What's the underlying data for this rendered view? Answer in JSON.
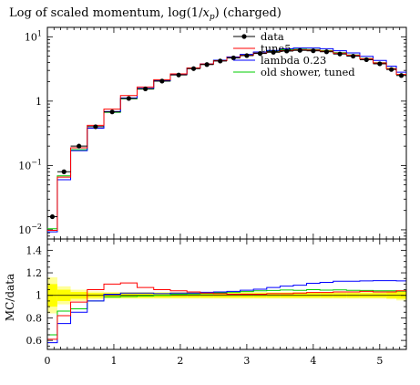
{
  "title": "Log of scaled momentum, log(1/x_p) (charged)",
  "title_parts": {
    "prefix": "Log of scaled momentum, log(1/",
    "var": "x",
    "sub": "p",
    "suffix": ") (charged)"
  },
  "colors": {
    "data": "#000000",
    "tune5": "#ff0000",
    "lambda": "#0000ff",
    "old_shower": "#00cc00",
    "band_inner": "#ffff00",
    "band_outer": "#ffff99"
  },
  "chart_data": [
    {
      "type": "line",
      "panel": "main",
      "xlim": [
        0,
        5.4
      ],
      "ylim": [
        0.0072,
        14
      ],
      "yscale": "log",
      "ytick_labels": [
        "10^-2",
        "10^-1",
        "1",
        "10^1"
      ],
      "bin_edges": [
        0.0,
        0.15,
        0.35,
        0.6,
        0.85,
        1.1,
        1.35,
        1.6,
        1.85,
        2.1,
        2.3,
        2.5,
        2.7,
        2.9,
        3.1,
        3.3,
        3.5,
        3.7,
        3.9,
        4.1,
        4.3,
        4.5,
        4.7,
        4.9,
        5.1,
        5.25,
        5.4
      ],
      "legend_position": "top-right",
      "series": [
        {
          "name": "data",
          "kind": "points",
          "x": [
            0.075,
            0.25,
            0.475,
            0.725,
            0.975,
            1.225,
            1.475,
            1.725,
            1.975,
            2.2,
            2.4,
            2.6,
            2.8,
            3.0,
            3.2,
            3.4,
            3.6,
            3.8,
            4.0,
            4.2,
            4.4,
            4.6,
            4.8,
            5.0,
            5.175,
            5.325
          ],
          "values": [
            0.016,
            0.08,
            0.2,
            0.4,
            0.68,
            1.1,
            1.55,
            2.05,
            2.55,
            3.2,
            3.7,
            4.2,
            4.7,
            5.1,
            5.5,
            5.75,
            6.0,
            6.15,
            6.05,
            5.85,
            5.4,
            5.0,
            4.4,
            3.8,
            3.1,
            2.5
          ]
        },
        {
          "name": "tune5",
          "kind": "hist",
          "values": [
            0.0098,
            0.066,
            0.188,
            0.42,
            0.75,
            1.22,
            1.66,
            2.15,
            2.65,
            3.28,
            3.78,
            4.26,
            4.75,
            5.16,
            5.56,
            5.83,
            6.1,
            6.26,
            6.21,
            6.0,
            5.56,
            5.15,
            4.55,
            3.92,
            3.2,
            2.6
          ]
        },
        {
          "name": "lambda 0.23",
          "kind": "hist",
          "values": [
            0.0093,
            0.06,
            0.17,
            0.38,
            0.69,
            1.12,
            1.58,
            2.08,
            2.6,
            3.27,
            3.8,
            4.32,
            4.86,
            5.33,
            5.8,
            6.15,
            6.49,
            6.7,
            6.7,
            6.52,
            6.07,
            5.62,
            4.96,
            4.29,
            3.5,
            2.82
          ]
        },
        {
          "name": "old shower, tuned",
          "kind": "hist",
          "values": [
            0.0104,
            0.069,
            0.176,
            0.38,
            0.67,
            1.09,
            1.54,
            2.05,
            2.57,
            3.24,
            3.76,
            4.29,
            4.83,
            5.27,
            5.72,
            6.0,
            6.28,
            6.42,
            6.35,
            6.12,
            5.66,
            5.22,
            4.59,
            3.95,
            3.22,
            2.59
          ]
        }
      ]
    },
    {
      "type": "line",
      "panel": "ratio",
      "ylabel": "MC/data",
      "xlim": [
        0,
        5.4
      ],
      "ylim": [
        0.52,
        1.5
      ],
      "xtick_labels": [
        "0",
        "1",
        "2",
        "3",
        "4",
        "5"
      ],
      "ytick_labels": [
        "0.6",
        "0.8",
        "1",
        "1.2",
        "1.4"
      ],
      "band": {
        "inner_half_width": [
          0.1,
          0.05,
          0.03,
          0.02,
          0.02,
          0.02,
          0.02,
          0.02,
          0.02,
          0.02,
          0.02,
          0.02,
          0.02,
          0.02,
          0.02,
          0.02,
          0.02,
          0.02,
          0.02,
          0.02,
          0.02,
          0.02,
          0.02,
          0.02,
          0.025,
          0.03
        ],
        "outer_half_width": [
          0.16,
          0.08,
          0.05,
          0.035,
          0.03,
          0.03,
          0.03,
          0.03,
          0.03,
          0.03,
          0.03,
          0.03,
          0.03,
          0.03,
          0.03,
          0.03,
          0.03,
          0.03,
          0.03,
          0.03,
          0.03,
          0.03,
          0.03,
          0.03,
          0.035,
          0.045
        ]
      },
      "series": [
        {
          "name": "tune5",
          "values": [
            0.61,
            0.82,
            0.94,
            1.05,
            1.1,
            1.11,
            1.07,
            1.05,
            1.04,
            1.03,
            1.02,
            1.015,
            1.01,
            1.01,
            1.01,
            1.015,
            1.015,
            1.02,
            1.025,
            1.025,
            1.03,
            1.03,
            1.035,
            1.03,
            1.03,
            1.04
          ]
        },
        {
          "name": "lambda 0.23",
          "values": [
            0.58,
            0.75,
            0.85,
            0.95,
            1.01,
            1.02,
            1.02,
            1.015,
            1.02,
            1.02,
            1.027,
            1.03,
            1.035,
            1.045,
            1.055,
            1.07,
            1.082,
            1.09,
            1.107,
            1.115,
            1.125,
            1.125,
            1.128,
            1.13,
            1.13,
            1.128
          ]
        },
        {
          "name": "old shower, tuned",
          "values": [
            0.65,
            0.86,
            0.88,
            0.95,
            0.985,
            0.99,
            0.995,
            1.0,
            1.01,
            1.012,
            1.015,
            1.022,
            1.028,
            1.033,
            1.04,
            1.043,
            1.047,
            1.044,
            1.05,
            1.046,
            1.048,
            1.044,
            1.043,
            1.04,
            1.04,
            1.036
          ]
        }
      ]
    }
  ]
}
